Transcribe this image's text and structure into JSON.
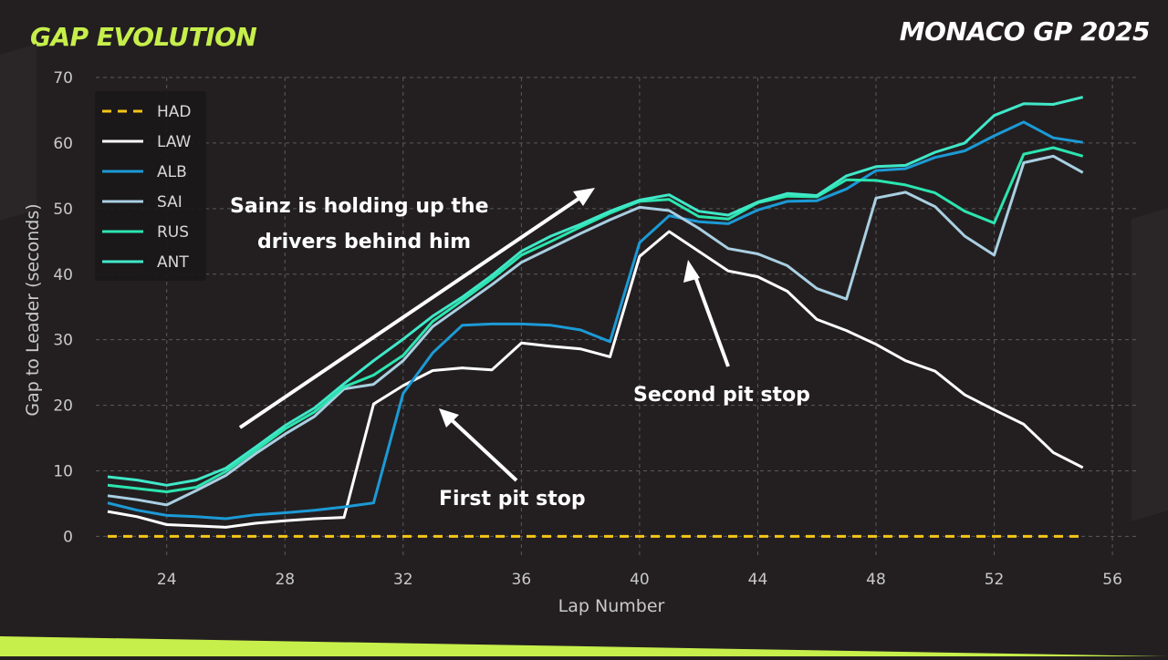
{
  "header": {
    "title": "GAP EVOLUTION",
    "event": "MONACO GP 2025"
  },
  "colors": {
    "background": "#231f20",
    "title_accent": "#c6ef4b",
    "bottom_band": "#c6ef4b",
    "grid": "#5a5a5a"
  },
  "chart_data": {
    "type": "line",
    "xlabel": "Lap Number",
    "ylabel": "Gap to Leader (seconds)",
    "xlim": [
      21.6,
      56.8
    ],
    "ylim": [
      -3,
      70
    ],
    "xticks": [
      24,
      28,
      32,
      36,
      40,
      44,
      48,
      52,
      56
    ],
    "yticks": [
      0,
      10,
      20,
      30,
      40,
      50,
      60,
      70
    ],
    "grid": true,
    "legend_position": "top-left",
    "x": [
      22,
      23,
      24,
      25,
      26,
      27,
      28,
      29,
      30,
      31,
      32,
      33,
      34,
      35,
      36,
      37,
      38,
      39,
      40,
      41,
      42,
      43,
      44,
      45,
      46,
      47,
      48,
      49,
      50,
      51,
      52,
      53,
      54,
      55
    ],
    "series": [
      {
        "name": "HAD",
        "color": "#f5c518",
        "dash": true,
        "values": [
          0,
          0,
          0,
          0,
          0,
          0,
          0,
          0,
          0,
          0,
          0,
          0,
          0,
          0,
          0,
          0,
          0,
          0,
          0,
          0,
          0,
          0,
          0,
          0,
          0,
          0,
          0,
          0,
          0,
          0,
          0,
          0,
          0,
          0
        ]
      },
      {
        "name": "LAW",
        "color": "#ffffff",
        "dash": false,
        "values": [
          3.8,
          3.0,
          1.8,
          1.6,
          1.4,
          2.0,
          2.4,
          2.7,
          2.9,
          20.2,
          23.0,
          25.3,
          25.7,
          25.4,
          29.5,
          29.0,
          28.6,
          27.4,
          42.7,
          46.5,
          43.5,
          40.5,
          39.6,
          37.4,
          33.1,
          31.4,
          29.3,
          26.8,
          25.2,
          21.6,
          19.3,
          17.1,
          12.8,
          10.5
        ]
      },
      {
        "name": "ALB",
        "color": "#1c9ad6",
        "dash": false,
        "values": [
          5.1,
          4.0,
          3.2,
          3.0,
          2.7,
          3.3,
          3.6,
          4.0,
          4.5,
          5.1,
          21.8,
          28.0,
          32.2,
          32.4,
          32.4,
          32.2,
          31.5,
          29.7,
          44.8,
          48.9,
          48.0,
          47.7,
          49.8,
          51.1,
          51.2,
          53.0,
          55.8,
          56.1,
          57.8,
          58.8,
          61.1,
          63.2,
          60.8,
          60.1
        ]
      },
      {
        "name": "SAI",
        "color": "#a9cfe2",
        "dash": false,
        "values": [
          6.2,
          5.6,
          4.8,
          7.0,
          9.3,
          12.6,
          15.6,
          18.3,
          22.5,
          23.2,
          26.8,
          32.0,
          35.2,
          38.4,
          41.8,
          44.0,
          46.2,
          48.3,
          50.2,
          49.7,
          47.0,
          43.9,
          43.1,
          41.3,
          37.8,
          36.2,
          51.6,
          52.5,
          50.3,
          45.8,
          42.9,
          57.0,
          58.0,
          55.5
        ]
      },
      {
        "name": "RUS",
        "color": "#2ce5b0",
        "dash": false,
        "values": [
          7.8,
          7.3,
          6.8,
          7.5,
          9.9,
          13.1,
          16.4,
          19.0,
          22.8,
          24.6,
          27.6,
          32.8,
          36.0,
          39.3,
          42.9,
          45.0,
          47.2,
          49.3,
          51.1,
          51.4,
          48.8,
          48.4,
          50.9,
          51.9,
          51.8,
          54.4,
          54.3,
          53.6,
          52.4,
          49.6,
          47.8,
          58.3,
          59.3,
          58.0
        ]
      },
      {
        "name": "ANT",
        "color": "#40e8c8",
        "dash": false,
        "values": [
          9.1,
          8.6,
          7.8,
          8.6,
          10.4,
          13.6,
          16.9,
          19.6,
          23.3,
          26.8,
          30.1,
          33.6,
          36.5,
          39.8,
          43.5,
          45.8,
          47.6,
          49.6,
          51.3,
          52.1,
          49.6,
          49.0,
          51.0,
          52.3,
          52.0,
          55.0,
          56.4,
          56.6,
          58.6,
          60.0,
          64.2,
          66.0,
          65.9,
          67.0
        ]
      }
    ],
    "annotations": [
      {
        "text": "Sainz is holding up the drivers behind him",
        "lines": [
          "Sainz is holding up the",
          "drivers behind him"
        ]
      },
      {
        "text": "First pit stop",
        "lines": [
          "First pit stop"
        ]
      },
      {
        "text": "Second pit stop",
        "lines": [
          "Second pit stop"
        ]
      }
    ]
  }
}
